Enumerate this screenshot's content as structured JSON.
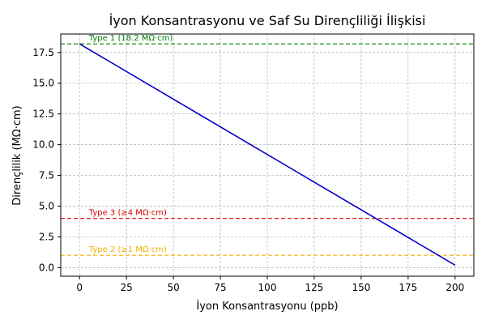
{
  "chart_data": {
    "type": "line",
    "title": "İyon Konsantrasyonu ve Saf Su Dirençliliği İlişkisi",
    "xlabel": "İyon Konsantrasyonu (ppb)",
    "ylabel": "Dirençlilik (MΩ·cm)",
    "xlim": [
      -10,
      210
    ],
    "ylim": [
      -0.7,
      19.0
    ],
    "grid": true,
    "x_ticks": [
      {
        "value": 0,
        "label": "0"
      },
      {
        "value": 25,
        "label": "25"
      },
      {
        "value": 50,
        "label": "50"
      },
      {
        "value": 75,
        "label": "75"
      },
      {
        "value": 100,
        "label": "100"
      },
      {
        "value": 125,
        "label": "125"
      },
      {
        "value": 150,
        "label": "150"
      },
      {
        "value": 175,
        "label": "175"
      },
      {
        "value": 200,
        "label": "200"
      }
    ],
    "y_ticks": [
      {
        "value": 0,
        "label": "0.0"
      },
      {
        "value": 2.5,
        "label": "2.5"
      },
      {
        "value": 5,
        "label": "5.0"
      },
      {
        "value": 7.5,
        "label": "7.5"
      },
      {
        "value": 10,
        "label": "10.0"
      },
      {
        "value": 12.5,
        "label": "12.5"
      },
      {
        "value": 15,
        "label": "15.0"
      },
      {
        "value": 17.5,
        "label": "17.5"
      }
    ],
    "series": [
      {
        "color": "#0000cc",
        "x": [
          0,
          200
        ],
        "y": [
          18.2,
          0.2
        ]
      }
    ],
    "reference_lines": [
      {
        "label": "Type 1 (18.2 MΩ·cm)",
        "y": 18.2,
        "color": "#008000"
      },
      {
        "label": "Type 3 (≥4 MΩ·cm)",
        "y": 4.0,
        "color": "#dd0000"
      },
      {
        "label": "Type 2 (≥1 MΩ·cm)",
        "y": 1.0,
        "color": "#f2b000"
      }
    ],
    "reference_label_x": 5
  }
}
